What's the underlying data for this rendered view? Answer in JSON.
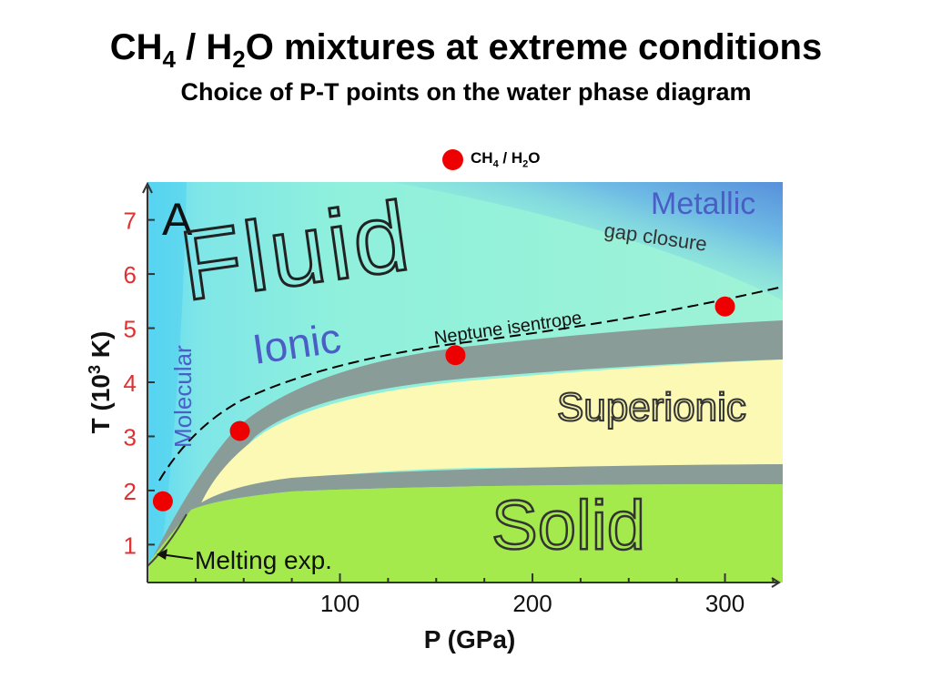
{
  "title": {
    "prefix": "CH",
    "sub1": "4",
    "mid": " / H",
    "sub2": "2",
    "suffix": "O mixtures at extreme conditions"
  },
  "subtitle": "Choice of P-T points on the water phase diagram",
  "legend": {
    "prefix": "CH",
    "sub1": "4",
    "mid": " / H",
    "sub2": "2",
    "suffix": "O",
    "color": "#ee0000"
  },
  "diagram": {
    "panel_label": "A",
    "regions": {
      "fluid": "Fluid",
      "metallic": "Metallic",
      "gap_closure": "gap closure",
      "ionic": "Ionic",
      "molecular": "Molecular",
      "superionic": "Superionic",
      "solid": "Solid"
    },
    "isentrope_label": "Neptune isentrope",
    "melting_label": "Melting exp.",
    "y_axis": {
      "label_prefix": "T (10",
      "label_sup": "3",
      "label_suffix": " K)",
      "ticks": [
        "1",
        "2",
        "3",
        "4",
        "5",
        "6",
        "7"
      ]
    },
    "x_axis": {
      "label": "P (GPa)",
      "ticks": [
        "100",
        "200",
        "300"
      ]
    },
    "colors": {
      "fluid": "#8ff0dc",
      "metallic": "#5a8fe0",
      "molecular": "#4fd0f0",
      "superionic": "#fbf9b3",
      "solid": "#a4ea4c",
      "boundary": "#8a9c98",
      "axis_tick_labels": "#e03030",
      "region_text_blue": "#4a5ec6",
      "points": "#ee0000"
    }
  },
  "chart_data": {
    "type": "scatter",
    "series": [
      {
        "name": "CH4 / H2O",
        "x": [
          8,
          48,
          160,
          300
        ],
        "y": [
          1.8,
          3.1,
          4.5,
          5.4
        ]
      }
    ],
    "xlabel": "P (GPa)",
    "ylabel": "T (10^3 K)",
    "xlim": [
      0,
      330
    ],
    "ylim": [
      0.3,
      7.7
    ]
  }
}
